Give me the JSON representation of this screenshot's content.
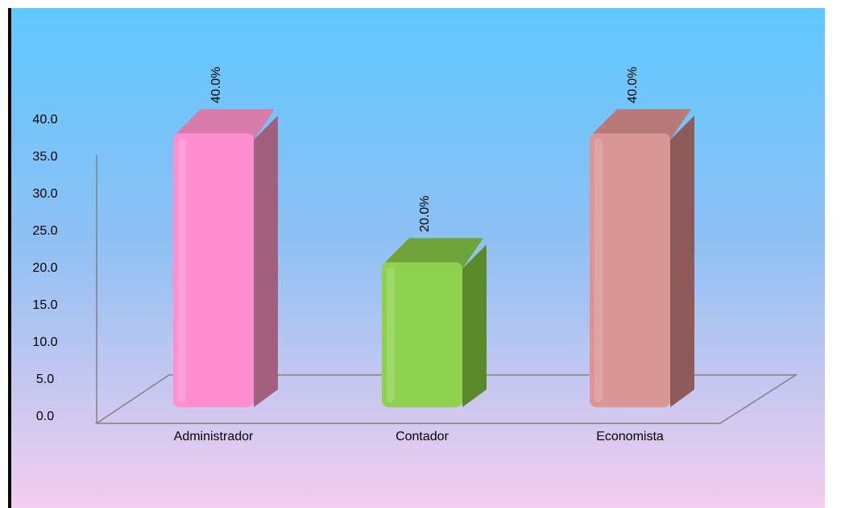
{
  "chart_data": {
    "type": "bar",
    "categories": [
      "Administrador",
      "Contador",
      "Economista"
    ],
    "values": [
      40.0,
      20.0,
      40.0
    ],
    "data_labels": [
      "40.0%",
      "20.0%",
      "40.0%"
    ],
    "y_ticks": [
      "0.0",
      "5.0",
      "10.0",
      "15.0",
      "20.0",
      "25.0",
      "30.0",
      "35.0",
      "40.0"
    ],
    "ylim": [
      0,
      40
    ],
    "title": "",
    "xlabel": "",
    "ylabel": "",
    "style": "3d-column",
    "grid": false,
    "legend": "none"
  },
  "colors": {
    "background_top": "#5fc8ff",
    "background_mid": "#8cc0f4",
    "background_bottom": "#f4cdee",
    "bars": [
      {
        "front": "#ff8fd0",
        "side": "#a0607e",
        "top": "#d77aac"
      },
      {
        "front": "#8fd14f",
        "side": "#5b8a2a",
        "top": "#6fa43a"
      },
      {
        "front": "#d99694",
        "side": "#8f5b5a",
        "top": "#b87a78"
      }
    ]
  }
}
